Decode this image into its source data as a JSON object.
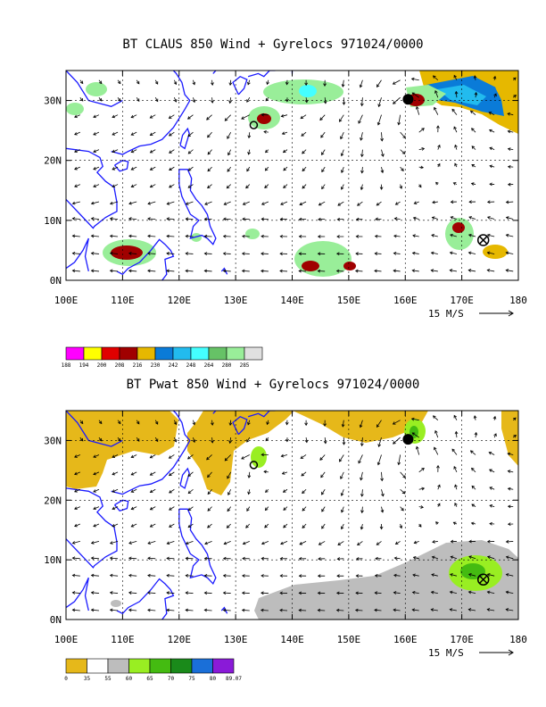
{
  "panels": [
    {
      "id": "claus",
      "title": "BT CLAUS 850 Wind + Gyrelocs 971024/0000",
      "extent": {
        "lon": [
          100,
          180
        ],
        "lat": [
          0,
          35
        ]
      },
      "x_ticks": [
        "100E",
        "110E",
        "120E",
        "130E",
        "140E",
        "150E",
        "160E",
        "170E",
        "180"
      ],
      "y_ticks": [
        "0N",
        "10N",
        "20N",
        "30N"
      ],
      "reference_vector": "15 M/S",
      "colorbar": {
        "labels": [
          "188",
          "194",
          "200",
          "208",
          "216",
          "230",
          "242",
          "248",
          "264",
          "280",
          "285"
        ],
        "colors": [
          "#ff00ff",
          "#ffff00",
          "#e00000",
          "#a00000",
          "#e6b800",
          "#0a7bd8",
          "#22bbee",
          "#44ffff",
          "#66c266",
          "#99ee99",
          "#e0e0e0"
        ]
      },
      "gyrelocs": [
        {
          "symbol": "filled-circle",
          "lon": 160.5,
          "lat": 30.2
        },
        {
          "symbol": "open-circle",
          "lon": 133.2,
          "lat": 25.9
        },
        {
          "symbol": "circle-cross",
          "lon": 173.8,
          "lat": 6.7
        }
      ]
    },
    {
      "id": "pwat",
      "title": "BT Pwat 850 Wind + Gyrelocs 971024/0000",
      "extent": {
        "lon": [
          100,
          180
        ],
        "lat": [
          0,
          35
        ]
      },
      "x_ticks": [
        "100E",
        "110E",
        "120E",
        "130E",
        "140E",
        "150E",
        "160E",
        "170E",
        "180"
      ],
      "y_ticks": [
        "0N",
        "10N",
        "20N",
        "30N"
      ],
      "reference_vector": "15 M/S",
      "colorbar": {
        "labels": [
          "0",
          "35",
          "55",
          "60",
          "65",
          "70",
          "75",
          "80",
          "89.07"
        ],
        "colors": [
          "#e6b81a",
          "#ffffff",
          "#bdbdbd",
          "#99ee22",
          "#44bb11",
          "#1a8a1a",
          "#1a6fd8",
          "#8a1ad8"
        ]
      },
      "gyrelocs": [
        {
          "symbol": "filled-circle",
          "lon": 160.5,
          "lat": 30.2
        },
        {
          "symbol": "open-circle",
          "lon": 133.2,
          "lat": 25.9
        },
        {
          "symbol": "circle-cross",
          "lon": 173.8,
          "lat": 6.7
        }
      ]
    }
  ]
}
